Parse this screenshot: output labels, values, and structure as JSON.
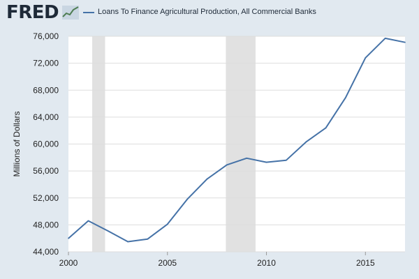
{
  "header": {
    "brand": "FRED",
    "legend_label": "Loans To Finance Agricultural Production, All Commercial Banks",
    "brand_icon": "line-chart-icon"
  },
  "colors": {
    "background": "#e1e9f0",
    "plot_background": "#ffffff",
    "series_line": "#4572a7",
    "recession": "#e1e1e1",
    "grid": "#dddddd"
  },
  "chart_data": {
    "type": "line",
    "title": "",
    "xlabel": "",
    "ylabel": "Millions of Dollars",
    "xlim": [
      2000,
      2017
    ],
    "ylim": [
      44000,
      76000
    ],
    "grid": "horizontal",
    "legend_position": "top",
    "x_ticks": [
      2000,
      2005,
      2010,
      2015
    ],
    "x_tick_labels": [
      "2000",
      "2005",
      "2010",
      "2015"
    ],
    "y_ticks": [
      44000,
      48000,
      52000,
      56000,
      60000,
      64000,
      68000,
      72000,
      76000
    ],
    "y_tick_labels": [
      "44,000",
      "48,000",
      "52,000",
      "56,000",
      "60,000",
      "64,000",
      "68,000",
      "72,000",
      "76,000"
    ],
    "recessions": [
      [
        2001.2,
        2001.85
      ],
      [
        2007.95,
        2009.45
      ]
    ],
    "series": [
      {
        "name": "Loans To Finance Agricultural Production, All Commercial Banks",
        "x": [
          2000,
          2001,
          2002,
          2003,
          2004,
          2005,
          2006,
          2007,
          2008,
          2009,
          2010,
          2011,
          2012,
          2013,
          2014,
          2015,
          2016,
          2017
        ],
        "y": [
          46000,
          48600,
          47100,
          45500,
          45900,
          48100,
          51800,
          54800,
          56900,
          57900,
          57300,
          57600,
          60300,
          62400,
          66900,
          72800,
          75700,
          75100
        ]
      }
    ]
  }
}
